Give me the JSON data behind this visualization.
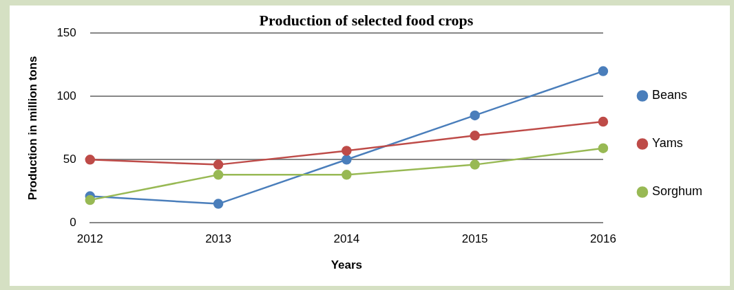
{
  "chart_data": {
    "type": "line",
    "title": "Production of selected food crops",
    "xlabel": "Years",
    "ylabel": "Production in million tons",
    "categories": [
      "2012",
      "2013",
      "2014",
      "2015",
      "2016"
    ],
    "series": [
      {
        "name": "Beans",
        "color": "#4a7ebb",
        "values": [
          21,
          15,
          50,
          85,
          120
        ]
      },
      {
        "name": "Yams",
        "color": "#be4b48",
        "values": [
          50,
          46,
          57,
          69,
          80
        ]
      },
      {
        "name": "Sorghum",
        "color": "#98b954",
        "values": [
          18,
          38,
          38,
          46,
          59
        ]
      }
    ],
    "ylim": [
      0,
      150
    ],
    "yticks": [
      0,
      50,
      100,
      150
    ],
    "grid": "y",
    "legend": "right",
    "marker": "circle",
    "line_style": "solid"
  }
}
